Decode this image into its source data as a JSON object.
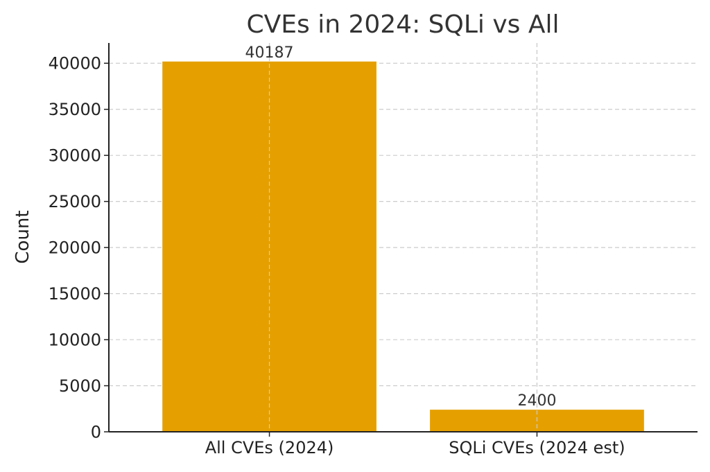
{
  "chart_data": {
    "type": "bar",
    "title": "CVEs in 2024: SQLi vs All",
    "xlabel": "",
    "ylabel": "Count",
    "categories": [
      "All CVEs (2024)",
      "SQLi CVEs (2024 est)"
    ],
    "values": [
      40187,
      2400
    ],
    "data_labels": [
      "40187",
      "2400"
    ],
    "ylim": [
      0,
      42200
    ],
    "yticks": [
      0,
      5000,
      10000,
      15000,
      20000,
      25000,
      30000,
      35000,
      40000
    ],
    "ytick_labels": [
      "0",
      "5000",
      "10000",
      "15000",
      "20000",
      "25000",
      "30000",
      "35000",
      "40000"
    ],
    "grid": true,
    "bar_color": "#E5A000"
  }
}
